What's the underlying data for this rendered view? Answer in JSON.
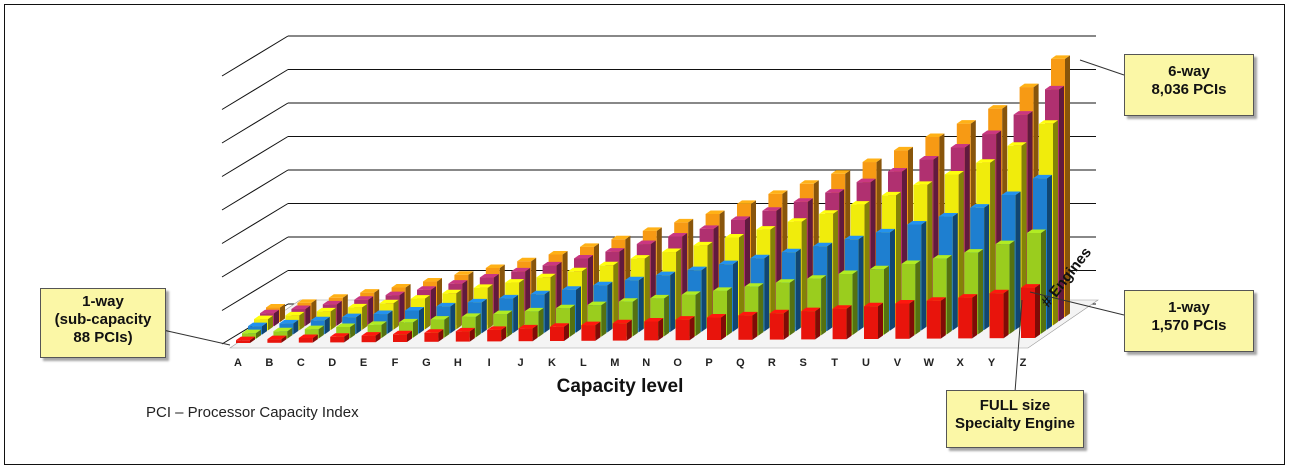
{
  "chart_data": {
    "type": "bar",
    "categories": [
      "A",
      "B",
      "C",
      "D",
      "E",
      "F",
      "G",
      "H",
      "I",
      "J",
      "K",
      "L",
      "M",
      "N",
      "O",
      "P",
      "Q",
      "R",
      "S",
      "T",
      "U",
      "V",
      "W",
      "X",
      "Y",
      "Z"
    ],
    "series": [
      {
        "color": "#e8140c",
        "values": [
          88,
          115,
          145,
          175,
          205,
          240,
          280,
          320,
          360,
          400,
          445,
          490,
          540,
          590,
          640,
          700,
          760,
          820,
          880,
          950,
          1020,
          1100,
          1180,
          1270,
          1400,
          1570
        ]
      },
      {
        "color": "#9acd1e"
      },
      {
        "color": "#1e7fd0"
      },
      {
        "color": "#f0ec0c"
      },
      {
        "color": "#b03070"
      },
      {
        "color": "#f79a14",
        "values": [
          null,
          null,
          null,
          null,
          null,
          null,
          null,
          null,
          null,
          null,
          null,
          null,
          null,
          null,
          null,
          null,
          null,
          null,
          null,
          null,
          null,
          null,
          null,
          null,
          null,
          8036
        ]
      }
    ],
    "xlabel": "Capacity level",
    "zlabel": "# Engines",
    "footnote": "PCI – Processor Capacity Index",
    "grid": true
  },
  "callouts": {
    "one_way_sub": {
      "line1": "1-way",
      "line2": "(sub-capacity",
      "line3": "88 PCIs)"
    },
    "six_way": {
      "line1": "6-way",
      "line2": "8,036 PCIs"
    },
    "one_way_full": {
      "line1": "1-way",
      "line2": "1,570 PCIs"
    },
    "full_size": {
      "line1": "FULL size",
      "line2": "Specialty Engine"
    }
  }
}
